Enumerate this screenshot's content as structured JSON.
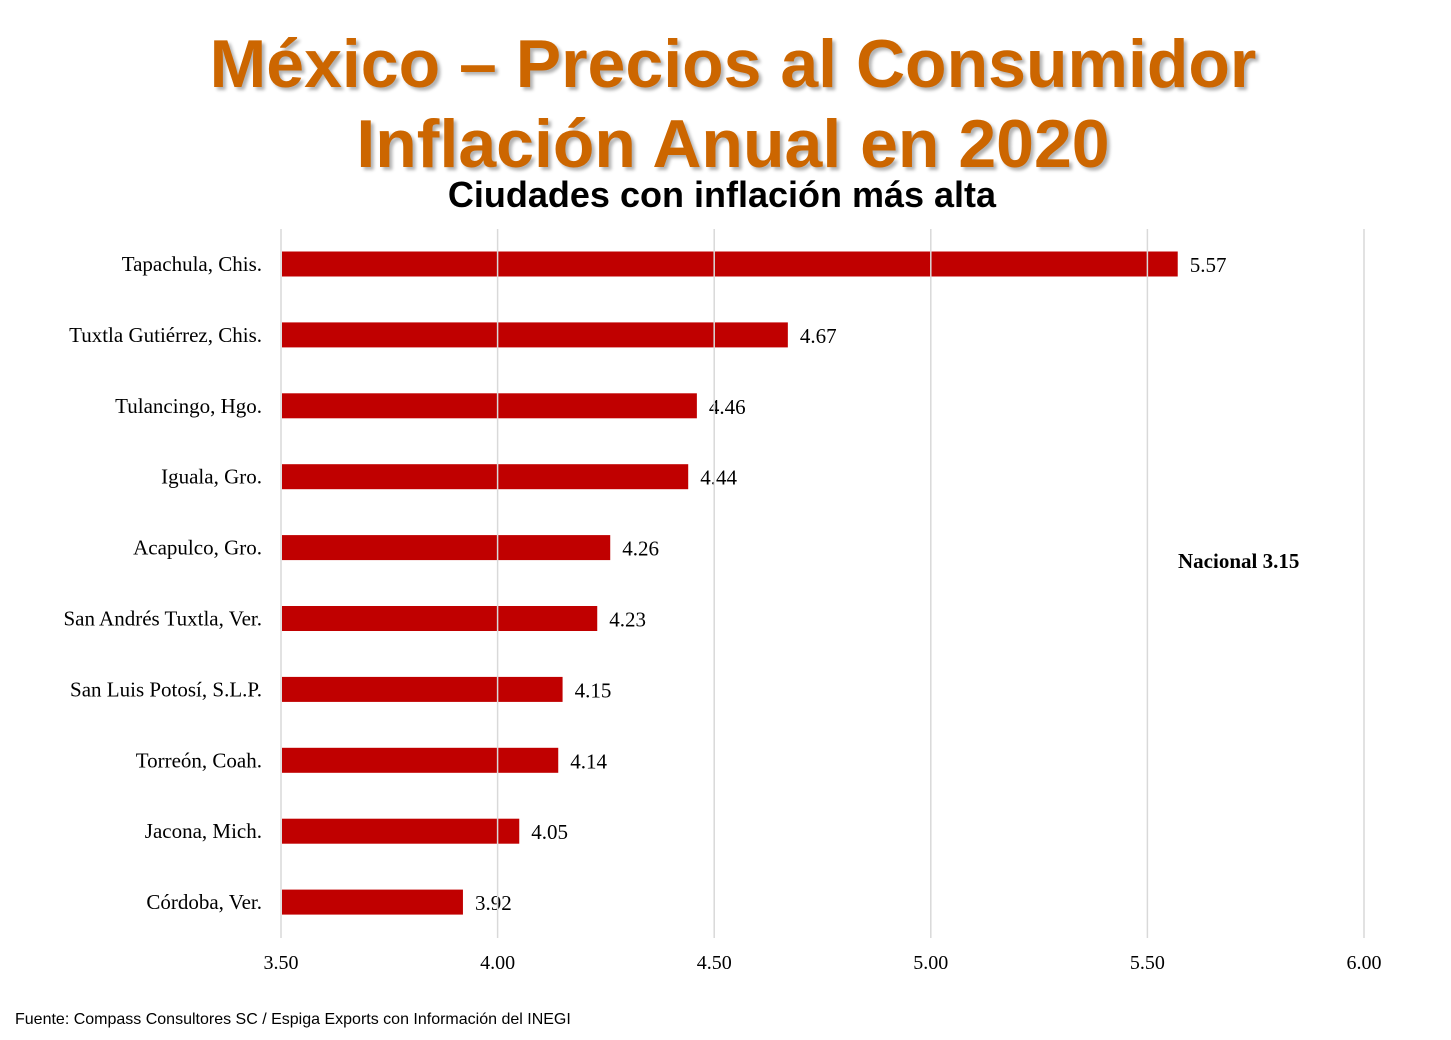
{
  "title_line1": "México – Precios al Consumidor",
  "title_line2": "Inflación Anual en 2020",
  "footer": "Fuente: Compass Consultores SC / Espiga Exports con Información del INEGI",
  "chart_data": {
    "type": "bar",
    "orientation": "horizontal",
    "title": "Ciudades con inflación más alta",
    "categories": [
      "Tapachula, Chis.",
      "Tuxtla Gutiérrez, Chis.",
      "Tulancingo, Hgo.",
      "Iguala, Gro.",
      "Acapulco, Gro.",
      "San Andrés Tuxtla, Ver.",
      "San Luis Potosí, S.L.P.",
      "Torreón, Coah.",
      "Jacona, Mich.",
      "Córdoba, Ver."
    ],
    "values": [
      5.57,
      4.67,
      4.46,
      4.44,
      4.26,
      4.23,
      4.15,
      4.14,
      4.05,
      3.92
    ],
    "data_labels": [
      "5.57",
      "4.67",
      "4.46",
      "4.44",
      "4.26",
      "4.23",
      "4.15",
      "4.14",
      "4.05",
      "3.92"
    ],
    "xlim": [
      3.5,
      6.0
    ],
    "xticks": [
      "3.50",
      "4.00",
      "4.50",
      "5.00",
      "5.50",
      "6.00"
    ],
    "grid": true,
    "bar_color": "#C00000",
    "annotation": "Nacional 3.15"
  }
}
